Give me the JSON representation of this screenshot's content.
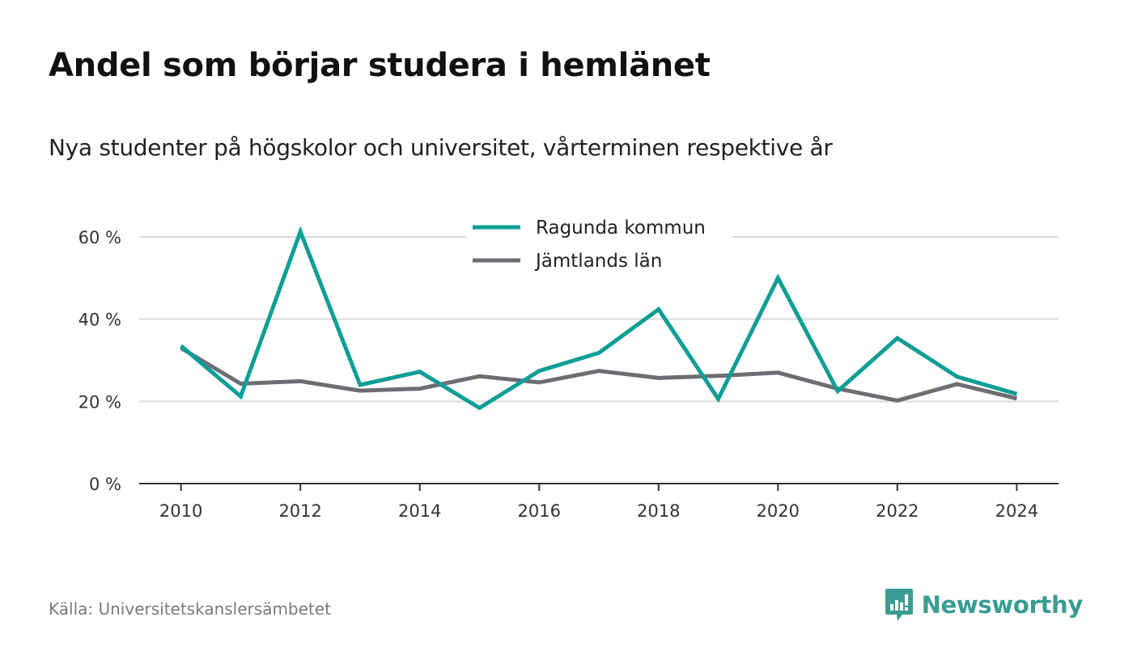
{
  "title": "Andel som börjar studera i hemlänet",
  "subtitle": "Nya studenter på högskolor och universitet, vårterminen respektive år",
  "source": "Källa: Universitetskanslersämbetet",
  "brand": {
    "name": "Newsworthy",
    "icon": "newsworthy-logo-icon",
    "color": "#3a9c92"
  },
  "chart_data": {
    "type": "line",
    "x": [
      2010,
      2011,
      2012,
      2013,
      2014,
      2015,
      2016,
      2017,
      2018,
      2019,
      2020,
      2021,
      2022,
      2023,
      2024
    ],
    "series": [
      {
        "name": "Ragunda kommun",
        "color": "#0e9e96",
        "values": [
          33.5,
          21.2,
          61.3,
          24.0,
          27.2,
          18.4,
          27.4,
          31.8,
          42.4,
          20.6,
          50.0,
          22.5,
          35.4,
          26.0,
          21.8
        ]
      },
      {
        "name": "Jämtlands län",
        "color": "#6e6d73",
        "values": [
          33.0,
          24.3,
          24.9,
          22.6,
          23.1,
          26.1,
          24.6,
          27.4,
          25.7,
          26.2,
          27.0,
          23.1,
          20.2,
          24.2,
          20.7
        ]
      }
    ],
    "xticks": [
      2010,
      2012,
      2014,
      2016,
      2018,
      2020,
      2022,
      2024
    ],
    "yticks": [
      0,
      20,
      40,
      60
    ],
    "ytick_suffix": " %",
    "xlim": [
      2009.3,
      2024.7
    ],
    "ylim": [
      0,
      60
    ],
    "grid": true,
    "legend_position": "top-center"
  }
}
